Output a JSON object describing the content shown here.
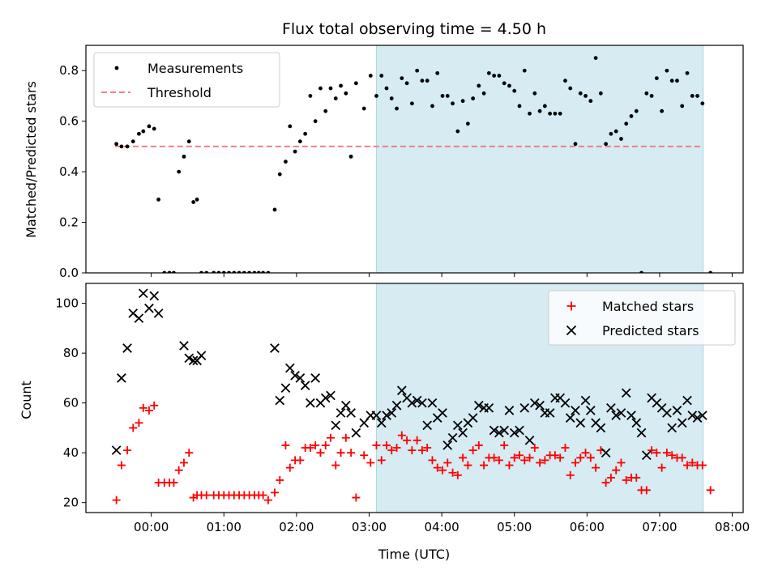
{
  "title": "Flux total observing time = 4.50 h",
  "colors": {
    "measurement": "#000000",
    "threshold": "#f08080",
    "shade": "#add8e6",
    "matched": "#ff0000",
    "predicted": "#000000"
  },
  "chart_data": [
    {
      "type": "scatter",
      "panel": "top",
      "ylabel": "Matched/Predicted stars",
      "x_unit": "hours (UTC, relative to 00:00)",
      "xlim": [
        -0.9,
        8.15
      ],
      "ylim": [
        0,
        0.9
      ],
      "yticks": [
        "0.0",
        "0.2",
        "0.4",
        "0.6",
        "0.8"
      ],
      "ytick_values": [
        0,
        0.2,
        0.4,
        0.6,
        0.8
      ],
      "shaded_span": [
        3.1,
        7.6
      ],
      "legend_position": "upper left",
      "legend": [
        "Measurements",
        "Threshold"
      ],
      "threshold": {
        "value": 0.5,
        "x_range": [
          -0.5,
          7.6
        ]
      },
      "series": [
        {
          "name": "Measurements",
          "marker": "dot",
          "x": [
            -0.48,
            -0.41,
            -0.33,
            -0.25,
            -0.17,
            -0.11,
            -0.03,
            0.04,
            0.1,
            0.18,
            0.25,
            0.31,
            0.38,
            0.45,
            0.52,
            0.58,
            0.63,
            0.69,
            0.76,
            0.86,
            0.93,
            1.0,
            1.07,
            1.14,
            1.21,
            1.28,
            1.35,
            1.42,
            1.48,
            1.54,
            1.61,
            1.7,
            1.77,
            1.85,
            1.91,
            1.98,
            2.05,
            2.12,
            2.19,
            2.26,
            2.33,
            2.4,
            2.47,
            2.54,
            2.61,
            2.68,
            2.75,
            2.82,
            2.93,
            3.02,
            3.1,
            3.17,
            3.24,
            3.31,
            3.38,
            3.45,
            3.52,
            3.59,
            3.66,
            3.73,
            3.8,
            3.87,
            3.94,
            4.01,
            4.08,
            4.15,
            4.22,
            4.29,
            4.36,
            4.43,
            4.51,
            4.58,
            4.65,
            4.72,
            4.79,
            4.86,
            4.93,
            5.0,
            5.07,
            5.14,
            5.21,
            5.28,
            5.35,
            5.42,
            5.49,
            5.56,
            5.63,
            5.7,
            5.77,
            5.84,
            5.91,
            5.98,
            6.05,
            6.12,
            6.19,
            6.26,
            6.33,
            6.4,
            6.47,
            6.54,
            6.61,
            6.68,
            6.75,
            6.82,
            6.89,
            6.96,
            7.03,
            7.1,
            7.17,
            7.24,
            7.31,
            7.38,
            7.45,
            7.52,
            7.59,
            7.7
          ],
          "y": [
            0.51,
            0.5,
            0.5,
            0.52,
            0.55,
            0.56,
            0.58,
            0.57,
            0.29,
            0.0,
            0.0,
            0.0,
            0.4,
            0.46,
            0.52,
            0.28,
            0.29,
            0.0,
            0.0,
            0.0,
            0.0,
            0.0,
            0.0,
            0.0,
            0.0,
            0.0,
            0.0,
            0.0,
            0.0,
            0.0,
            0.0,
            0.25,
            0.39,
            0.44,
            0.58,
            0.48,
            0.52,
            0.55,
            0.7,
            0.6,
            0.73,
            0.64,
            0.73,
            0.69,
            0.74,
            0.71,
            0.46,
            0.75,
            0.65,
            0.78,
            0.7,
            0.78,
            0.73,
            0.69,
            0.65,
            0.77,
            0.75,
            0.67,
            0.8,
            0.76,
            0.76,
            0.66,
            0.79,
            0.7,
            0.7,
            0.67,
            0.56,
            0.68,
            0.59,
            0.69,
            0.74,
            0.71,
            0.79,
            0.78,
            0.78,
            0.75,
            0.74,
            0.72,
            0.66,
            0.8,
            0.63,
            0.71,
            0.64,
            0.66,
            0.63,
            0.63,
            0.63,
            0.76,
            0.73,
            0.51,
            0.71,
            0.7,
            0.68,
            0.85,
            0.71,
            0.51,
            0.55,
            0.56,
            0.53,
            0.59,
            0.62,
            0.64,
            0.0,
            0.71,
            0.7,
            0.77,
            0.64,
            0.8,
            0.76,
            0.76,
            0.66,
            0.79,
            0.7,
            0.7,
            0.67,
            0.0
          ]
        }
      ]
    },
    {
      "type": "scatter",
      "panel": "bottom",
      "xlabel": "Time (UTC)",
      "ylabel": "Count",
      "x_unit": "hours (UTC, relative to 00:00)",
      "xlim": [
        -0.9,
        8.15
      ],
      "ylim": [
        16,
        108
      ],
      "xticks": [
        "00:00",
        "01:00",
        "02:00",
        "03:00",
        "04:00",
        "05:00",
        "06:00",
        "07:00",
        "08:00"
      ],
      "xtick_values": [
        0,
        1,
        2,
        3,
        4,
        5,
        6,
        7,
        8
      ],
      "yticks": [
        "20",
        "40",
        "60",
        "80",
        "100"
      ],
      "ytick_values": [
        20,
        40,
        60,
        80,
        100
      ],
      "shaded_span": [
        3.1,
        7.6
      ],
      "legend_position": "upper right",
      "legend": [
        "Matched stars",
        "Predicted stars"
      ],
      "series": [
        {
          "name": "Matched stars",
          "marker": "plus",
          "x": [
            -0.48,
            -0.41,
            -0.33,
            -0.25,
            -0.17,
            -0.11,
            -0.03,
            0.04,
            0.1,
            0.18,
            0.25,
            0.31,
            0.38,
            0.45,
            0.52,
            0.58,
            0.63,
            0.69,
            0.76,
            0.86,
            0.93,
            1.0,
            1.07,
            1.14,
            1.21,
            1.28,
            1.35,
            1.42,
            1.48,
            1.54,
            1.61,
            1.7,
            1.77,
            1.85,
            1.91,
            1.98,
            2.05,
            2.12,
            2.19,
            2.26,
            2.33,
            2.4,
            2.47,
            2.54,
            2.61,
            2.68,
            2.75,
            2.82,
            2.93,
            3.02,
            3.1,
            3.17,
            3.24,
            3.31,
            3.38,
            3.45,
            3.52,
            3.59,
            3.66,
            3.73,
            3.8,
            3.87,
            3.94,
            4.01,
            4.08,
            4.15,
            4.22,
            4.29,
            4.36,
            4.43,
            4.51,
            4.58,
            4.65,
            4.72,
            4.79,
            4.86,
            4.93,
            5.0,
            5.07,
            5.14,
            5.21,
            5.28,
            5.35,
            5.42,
            5.49,
            5.56,
            5.63,
            5.7,
            5.77,
            5.84,
            5.91,
            5.98,
            6.05,
            6.12,
            6.19,
            6.26,
            6.33,
            6.4,
            6.47,
            6.54,
            6.61,
            6.68,
            6.75,
            6.82,
            6.89,
            6.96,
            7.03,
            7.1,
            7.17,
            7.24,
            7.31,
            7.38,
            7.45,
            7.52,
            7.59,
            7.7
          ],
          "y": [
            21,
            35,
            41,
            50,
            52,
            58,
            57,
            59,
            28,
            28,
            28,
            28,
            33,
            36,
            40,
            22,
            23,
            23,
            23,
            23,
            23,
            23,
            23,
            23,
            23,
            23,
            23,
            23,
            23,
            23,
            21,
            24,
            29,
            43,
            34,
            37,
            37,
            42,
            42,
            43,
            40,
            43,
            46,
            35,
            40,
            46,
            40,
            22,
            39,
            36,
            43,
            37,
            43,
            41,
            42,
            47,
            45,
            41,
            45,
            41,
            42,
            37,
            34,
            33,
            36,
            32,
            31,
            38,
            35,
            41,
            43,
            35,
            38,
            38,
            37,
            43,
            35,
            38,
            39,
            37,
            38,
            42,
            36,
            37,
            39,
            39,
            38,
            42,
            31,
            36,
            38,
            40,
            38,
            34,
            41,
            28,
            30,
            33,
            36,
            29,
            30,
            30,
            25,
            25,
            41,
            40,
            34,
            40,
            39,
            38,
            38,
            35,
            36,
            35,
            35,
            25
          ]
        },
        {
          "name": "Predicted stars",
          "marker": "x",
          "x": [
            -0.48,
            -0.41,
            -0.33,
            -0.25,
            -0.17,
            -0.11,
            -0.03,
            0.04,
            0.1,
            0.45,
            0.52,
            0.58,
            0.63,
            0.69,
            1.7,
            1.77,
            1.85,
            1.91,
            1.98,
            2.05,
            2.12,
            2.19,
            2.26,
            2.33,
            2.4,
            2.47,
            2.54,
            2.61,
            2.68,
            2.75,
            2.82,
            2.93,
            3.02,
            3.1,
            3.17,
            3.24,
            3.31,
            3.38,
            3.45,
            3.52,
            3.59,
            3.66,
            3.73,
            3.8,
            3.87,
            3.94,
            4.01,
            4.08,
            4.15,
            4.22,
            4.29,
            4.36,
            4.43,
            4.51,
            4.58,
            4.65,
            4.72,
            4.79,
            4.86,
            4.93,
            5.0,
            5.07,
            5.14,
            5.21,
            5.28,
            5.35,
            5.42,
            5.49,
            5.56,
            5.63,
            5.7,
            5.77,
            5.84,
            5.91,
            5.98,
            6.05,
            6.12,
            6.19,
            6.26,
            6.33,
            6.4,
            6.47,
            6.54,
            6.61,
            6.68,
            6.75,
            6.82,
            6.89,
            6.96,
            7.03,
            7.1,
            7.17,
            7.24,
            7.31,
            7.38,
            7.45,
            7.52,
            7.59
          ],
          "y": [
            41,
            70,
            82,
            96,
            94,
            104,
            98,
            103,
            96,
            83,
            78,
            77,
            77,
            79,
            82,
            61,
            66,
            74,
            71,
            70,
            67,
            60,
            70,
            60,
            62,
            63,
            51,
            56,
            59,
            56,
            48,
            52,
            55,
            55,
            52,
            55,
            56,
            59,
            65,
            62,
            60,
            61,
            60,
            51,
            60,
            54,
            56,
            43,
            46,
            51,
            48,
            52,
            54,
            59,
            58,
            58,
            49,
            48,
            49,
            57,
            48,
            49,
            58,
            45,
            60,
            59,
            56,
            56,
            62,
            62,
            60,
            54,
            57,
            52,
            61,
            57,
            52,
            50,
            40,
            58,
            55,
            56,
            64,
            55,
            52,
            48,
            39,
            62,
            60,
            58,
            56,
            50,
            57,
            52,
            61,
            55,
            54,
            55
          ]
        }
      ]
    }
  ]
}
